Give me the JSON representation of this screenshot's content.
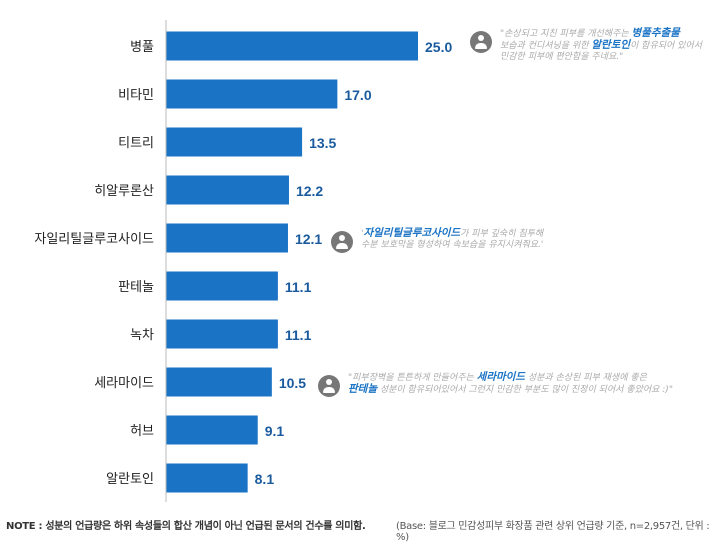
{
  "chart_data": {
    "type": "bar",
    "orientation": "horizontal",
    "categories": [
      "병풀",
      "비타민",
      "티트리",
      "히알루론산",
      "자일리틸글루코사이드",
      "판테놀",
      "녹차",
      "세라마이드",
      "허브",
      "알란토인"
    ],
    "values": [
      25.0,
      17.0,
      13.5,
      12.2,
      12.1,
      11.1,
      11.1,
      10.5,
      9.1,
      8.1
    ],
    "value_labels": [
      "25.0",
      "17.0",
      "13.5",
      "12.2",
      "12.1",
      "11.1",
      "11.1",
      "10.5",
      "9.1",
      "8.1"
    ],
    "bar_color": "#1a73c5",
    "label_color": "#1a5a9e",
    "xlim": [
      0,
      25
    ]
  },
  "quotes": [
    {
      "lines": [
        [
          {
            "t": "\"손상되고 지친 피부를 개선해주는 "
          },
          {
            "t": "병풀추출물",
            "b": true
          }
        ],
        [
          {
            "t": "보습과 컨디셔닝을 위한 "
          },
          {
            "t": "알란토인",
            "b": true
          },
          {
            "t": "이 함유되어 있어서"
          }
        ],
        [
          {
            "t": "민감한 피부에 편안함을 주네요.\""
          }
        ]
      ]
    },
    {
      "lines": [
        [
          {
            "t": "'"
          },
          {
            "t": "자일리틸글루코사이드",
            "b": true
          },
          {
            "t": "가 피부 깊숙히 침투해"
          }
        ],
        [
          {
            "t": "수분 보호막을 형성하여 속보습을 유지시켜줘요.'"
          }
        ]
      ]
    },
    {
      "lines": [
        [
          {
            "t": "\"피부장벽을 튼튼하게 만들어주는 "
          },
          {
            "t": "세라마이드",
            "b": true
          },
          {
            "t": " 성분과 손상된 피부 재생에 좋은"
          }
        ],
        [
          {
            "t": "판테놀",
            "b": true
          },
          {
            "t": " 성분이 함유되어있어서 그런지 민감한 부분도 많이 진정이 되어서 좋았어요 :)\""
          }
        ]
      ]
    }
  ],
  "footer": {
    "note": "NOTE : 성분의 언급량은 하위 속성들의 합산 개념이 아닌 언급된 문서의 건수를 의미함.",
    "base": "(Base: 블로그 민감성피부 화장품 관련 상위 언급량 기준, n=2,957건, 단위 : %)"
  }
}
